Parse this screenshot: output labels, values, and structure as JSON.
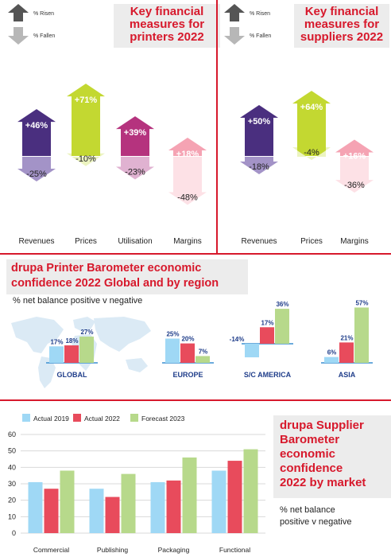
{
  "legend": {
    "risen": "% Risen",
    "fallen": "% Fallen"
  },
  "colors": {
    "purple": "#4a2f7f",
    "purple_light": "#a393c7",
    "lime": "#c3d831",
    "lime_light": "#ecf4c0",
    "magenta": "#b5337e",
    "magenta_light": "#e0b2d1",
    "pink": "#f5a3b3",
    "pink_light": "#fde1e6",
    "red": "#d7192c",
    "blue": "#9fd8f5",
    "chart_red": "#e84b5c",
    "green": "#b7d98b"
  },
  "printers": {
    "title_line1": "Key financial",
    "title_line2": "measures for",
    "title_line3": "printers 2022",
    "chart_data": {
      "type": "bar",
      "categories": [
        "Revenues",
        "Prices",
        "Utilisation",
        "Margins"
      ],
      "series": [
        {
          "name": "% Risen",
          "values": [
            46,
            71,
            39,
            18
          ]
        },
        {
          "name": "% Fallen",
          "values": [
            25,
            10,
            23,
            48
          ]
        }
      ],
      "labels_risen": [
        "+46%",
        "+71%",
        "+39%",
        "+18%"
      ],
      "labels_fallen": [
        "-25%",
        "-10%",
        "-23%",
        "-48%"
      ]
    }
  },
  "suppliers": {
    "title_line1": "Key financial",
    "title_line2": "measures for",
    "title_line3": "suppliers 2022",
    "chart_data": {
      "type": "bar",
      "categories": [
        "Revenues",
        "Prices",
        "Margins"
      ],
      "series": [
        {
          "name": "% Risen",
          "values": [
            50,
            64,
            16
          ]
        },
        {
          "name": "% Fallen",
          "values": [
            18,
            4,
            36
          ]
        }
      ],
      "labels_risen": [
        "+50%",
        "+64%",
        "+16%"
      ],
      "labels_fallen": [
        "-18%",
        "-4%",
        "-36%"
      ]
    }
  },
  "barometer": {
    "title_line1": "drupa Printer Barometer economic",
    "title_line2": "confidence 2022 Global and by region",
    "subtitle": "% net balance positive v negative",
    "chart_data": {
      "type": "bar",
      "categories": [
        "GLOBAL",
        "EUROPE",
        "S/C AMERICA",
        "ASIA"
      ],
      "series": [
        {
          "name": "Actual 2019",
          "values": [
            17,
            25,
            -14,
            6
          ]
        },
        {
          "name": "Actual 2022",
          "values": [
            18,
            20,
            17,
            21
          ]
        },
        {
          "name": "Forecast 2023",
          "values": [
            27,
            7,
            36,
            57
          ]
        }
      ],
      "labels": [
        [
          "17%",
          "18%",
          "27%"
        ],
        [
          "25%",
          "20%",
          "7%"
        ],
        [
          "-14%",
          "17%",
          "36%"
        ],
        [
          "6%",
          "21%",
          "57%"
        ]
      ]
    }
  },
  "supplier_market": {
    "title_line1": "drupa Supplier",
    "title_line2": "Barometer",
    "title_line3": "economic",
    "title_line4": "confidence",
    "title_line5": "2022 by market",
    "subtitle_line1": "% net balance",
    "subtitle_line2": "positive v negative",
    "chart_data": {
      "type": "bar",
      "categories": [
        "Commercial",
        "Publishing",
        "Packaging",
        "Functional"
      ],
      "series": [
        {
          "name": "Actual 2019",
          "values": [
            31,
            27,
            31,
            38
          ]
        },
        {
          "name": "Actual 2022",
          "values": [
            27,
            22,
            32,
            44
          ]
        },
        {
          "name": "Forecast 2023",
          "values": [
            38,
            36,
            46,
            51
          ]
        }
      ],
      "yticks": [
        "0",
        "10",
        "20",
        "30",
        "40",
        "50",
        "60"
      ],
      "ylim": [
        0,
        60
      ],
      "legend": [
        "Actual 2019",
        "Actual 2022",
        "Forecast 2023"
      ]
    }
  }
}
